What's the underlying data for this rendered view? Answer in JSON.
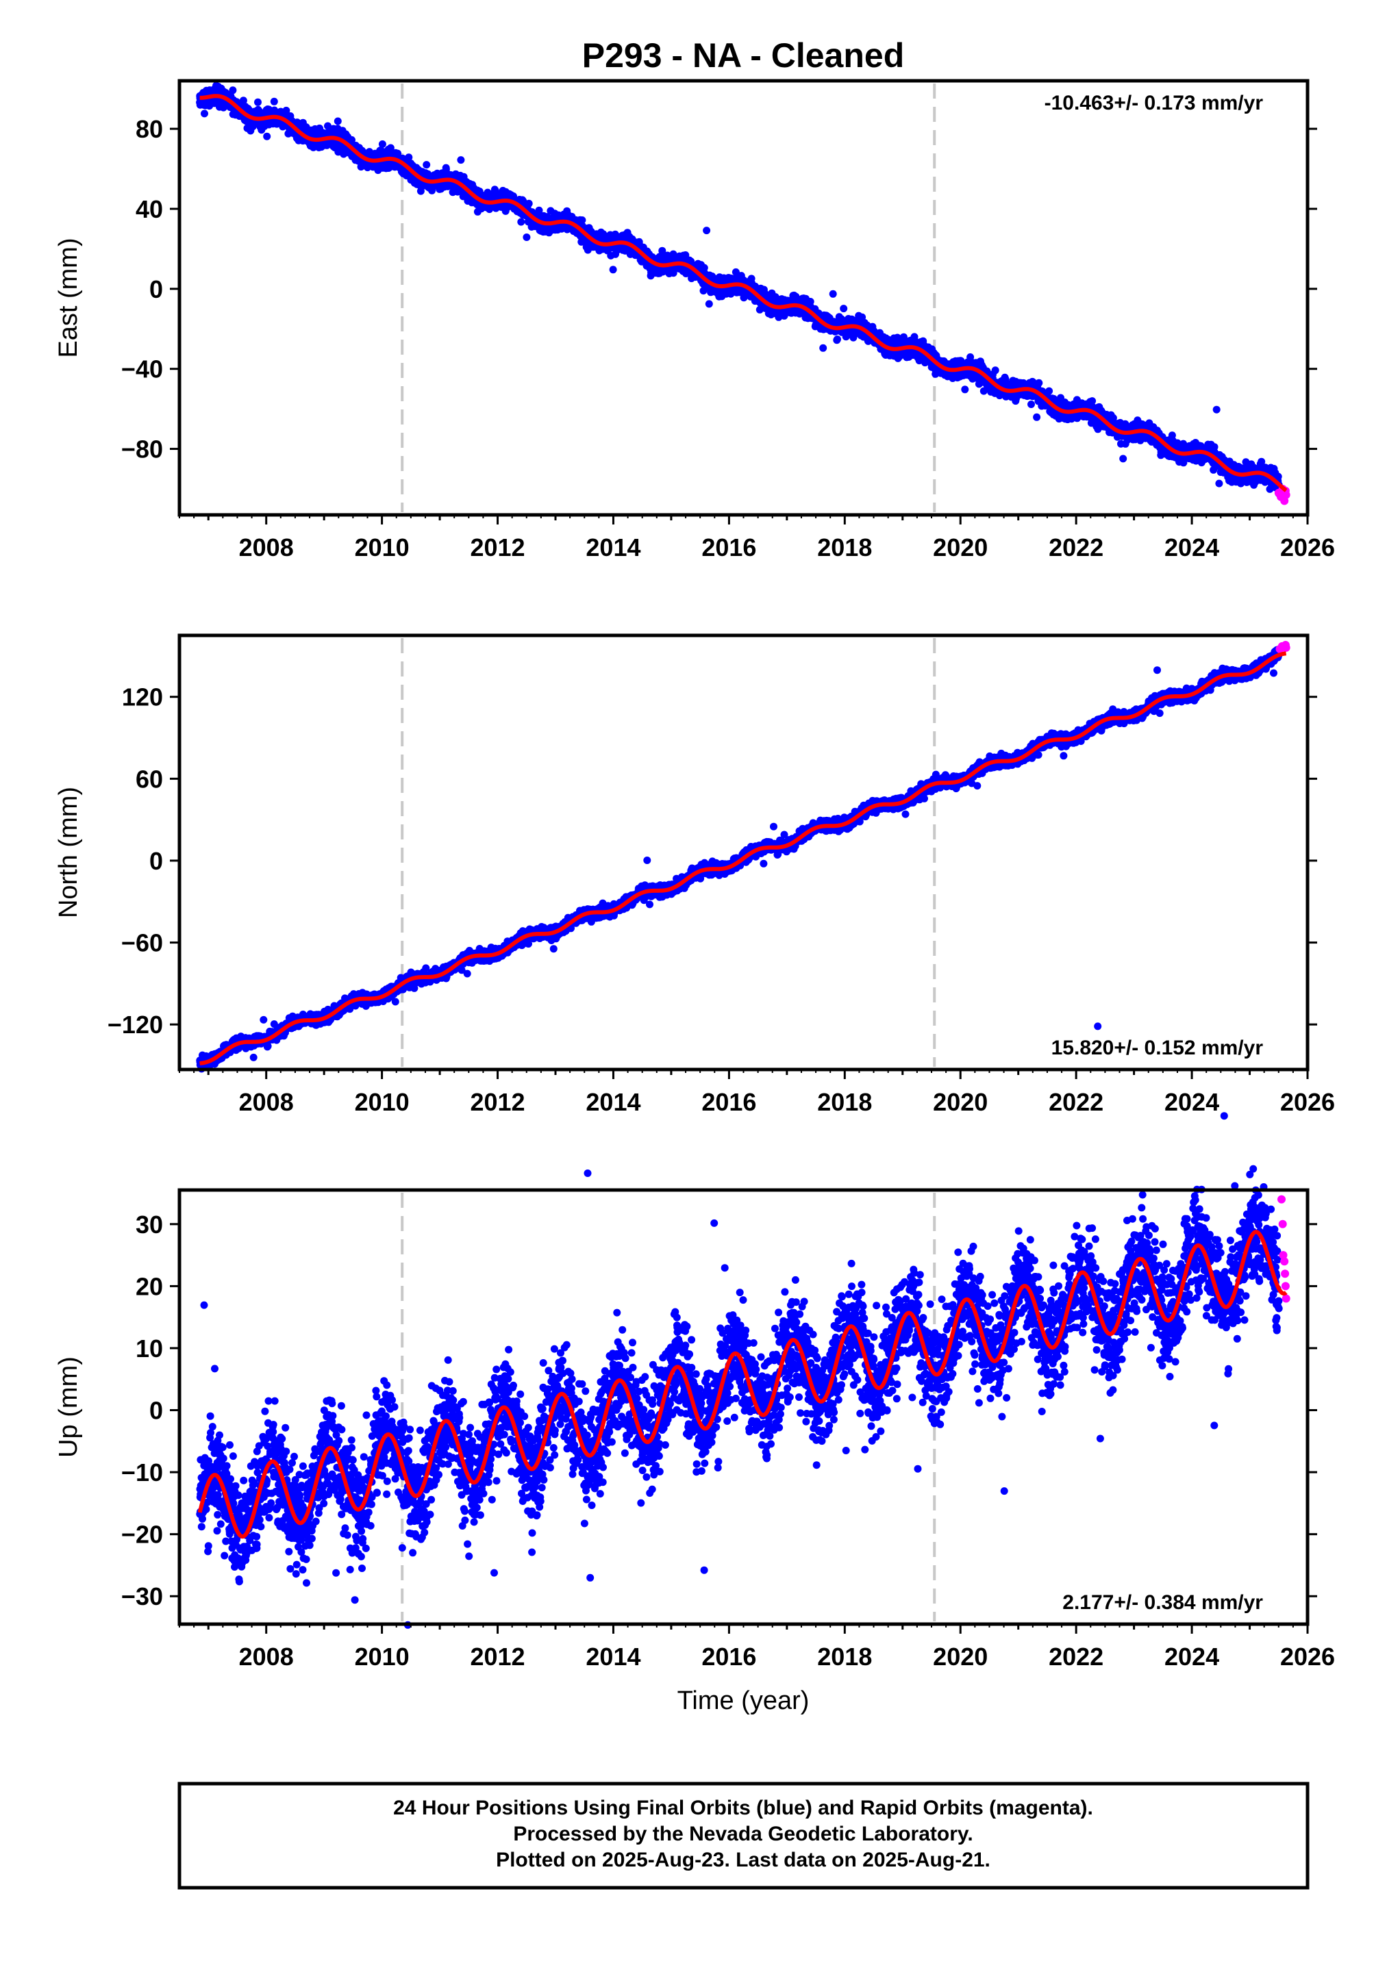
{
  "title": "P293  - NA - Cleaned",
  "xlabel": "Time (year)",
  "footer": {
    "line1": "24 Hour Positions Using Final Orbits (blue) and Rapid Orbits (magenta).",
    "line2": "Processed by the Nevada Geodetic Laboratory.",
    "line3": "Plotted on 2025-Aug-23. Last data on 2025-Aug-21."
  },
  "colors": {
    "final": "#0000ff",
    "rapid": "#ff00ff",
    "model": "#ff0000",
    "breaks": "#c8c8c8"
  },
  "chart_data": [
    {
      "type": "scatter",
      "component": "East",
      "ylabel": "East (mm)",
      "rate_text": "-10.463+/- 0.173 mm/yr",
      "xlim": [
        2006.5,
        2026
      ],
      "ylim": [
        -113,
        104
      ],
      "x_ticks": [
        "2008",
        "2010",
        "2012",
        "2014",
        "2016",
        "2018",
        "2020",
        "2022",
        "2024",
        "2026"
      ],
      "y_ticks": [
        80,
        40,
        0,
        -40,
        -80
      ],
      "equipment_breaks": [
        2010.35,
        2019.55
      ],
      "model": {
        "start": 2006.85,
        "end": 2025.63,
        "value_at_start": 97.5,
        "rate_mm_per_yr": -10.463,
        "seasonal_amplitude": 2.5,
        "seasonal_phase_year": 0.15,
        "scatter_mm": 2.2
      },
      "rapid_points": [
        [
          2025.5,
          -102
        ],
        [
          2025.54,
          -104
        ],
        [
          2025.57,
          -100
        ],
        [
          2025.6,
          -106
        ],
        [
          2025.62,
          -101
        ],
        [
          2025.63,
          -103
        ]
      ]
    },
    {
      "type": "scatter",
      "component": "North",
      "ylabel": "North (mm)",
      "rate_text": "15.820+/- 0.152 mm/yr",
      "xlim": [
        2006.5,
        2026
      ],
      "ylim": [
        -153,
        165
      ],
      "x_ticks": [
        "2008",
        "2010",
        "2012",
        "2014",
        "2016",
        "2018",
        "2020",
        "2022",
        "2024",
        "2026"
      ],
      "y_ticks": [
        120,
        60,
        0,
        -60,
        -120
      ],
      "equipment_breaks": [
        2010.35,
        2019.55
      ],
      "model": {
        "start": 2006.85,
        "end": 2025.63,
        "value_at_start": -147,
        "rate_mm_per_yr": 15.82,
        "seasonal_amplitude": 2.5,
        "seasonal_phase_year": 0.4,
        "scatter_mm": 2.0
      },
      "rapid_points": [
        [
          2025.52,
          155
        ],
        [
          2025.56,
          157
        ],
        [
          2025.59,
          156
        ],
        [
          2025.62,
          158
        ],
        [
          2025.63,
          156
        ]
      ]
    },
    {
      "type": "scatter",
      "component": "Up",
      "ylabel": "Up (mm)",
      "rate_text": "2.177+/- 0.384 mm/yr",
      "xlim": [
        2006.5,
        2026
      ],
      "ylim": [
        -34.5,
        35.5
      ],
      "x_ticks": [
        "2008",
        "2010",
        "2012",
        "2014",
        "2016",
        "2018",
        "2020",
        "2022",
        "2024",
        "2026"
      ],
      "y_ticks": [
        30,
        20,
        10,
        0,
        -10,
        -20,
        -30
      ],
      "equipment_breaks": [
        2010.35,
        2019.55
      ],
      "model": {
        "start": 2006.85,
        "end": 2025.63,
        "value_at_start": -16.5,
        "rate_mm_per_yr": 2.177,
        "seasonal_amplitude": 5.5,
        "seasonal_phase_year": 0.0,
        "scatter_mm": 4.0
      },
      "rapid_points": [
        [
          2025.55,
          34
        ],
        [
          2025.57,
          30
        ],
        [
          2025.58,
          25
        ],
        [
          2025.6,
          24
        ],
        [
          2025.61,
          22
        ],
        [
          2025.62,
          20
        ],
        [
          2025.63,
          18
        ]
      ]
    }
  ]
}
